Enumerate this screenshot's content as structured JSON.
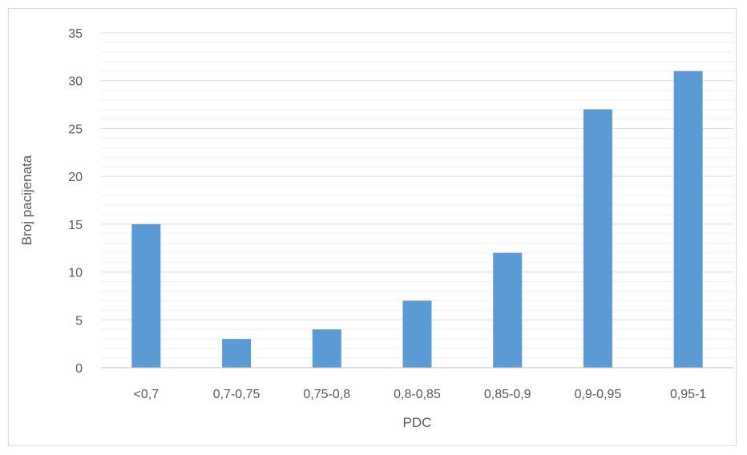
{
  "chart_data": {
    "type": "bar",
    "title": "",
    "xlabel": "PDC",
    "ylabel": "Broj pacijenata",
    "categories": [
      "<0,7",
      "0,7-0,75",
      "0,75-0,8",
      "0,8-0,85",
      "0,85-0,9",
      "0,9-0,95",
      "0,95-1"
    ],
    "values": [
      15,
      3,
      4,
      7,
      12,
      27,
      31
    ],
    "ylim": [
      0,
      35
    ],
    "yticks": [
      0,
      5,
      10,
      15,
      20,
      25,
      30,
      35
    ],
    "grid": "major and minor horizontal",
    "legend": "none",
    "bar_color": "#5b9bd5",
    "gridline_color": "#d9d9d9",
    "axis_color": "#bfbfbf"
  }
}
